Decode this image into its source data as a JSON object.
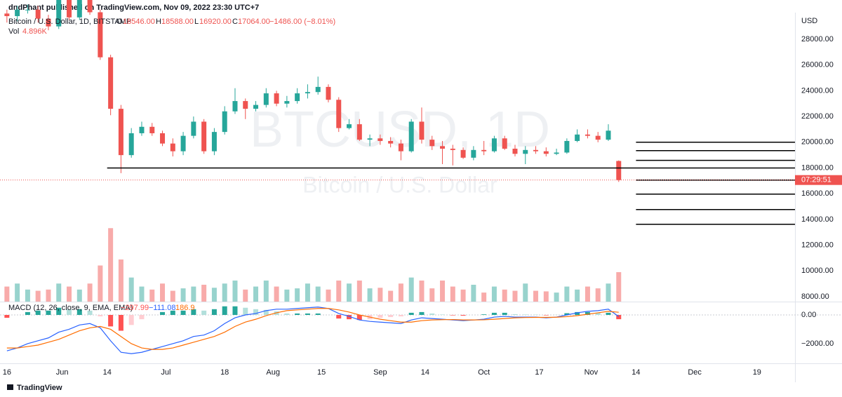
{
  "header": {
    "publisher": "dndPhant published on TradingView.com, Nov 09, 2022 23:30 UTC+7",
    "brand": "TradingView"
  },
  "chart_data": [
    {
      "type": "candlestick",
      "symbol": "Bitcoin / U.S. Dollar, 1D, BITSTAMP",
      "watermark": "BTCUSD, 1D",
      "watermark_subtitle": "Bitcoin / U.S. Dollar",
      "currency": "USD",
      "legend": {
        "o": "O",
        "h": "H",
        "l": "L",
        "c": "C",
        "open": "18546.00",
        "high": "18588.00",
        "low": "16920.00",
        "close": "17064.00",
        "change": "−1486.00 (−8.01%)",
        "vol": "Vol",
        "volume": "4.896K"
      },
      "countdown": "07:29:51",
      "up_color": "#26a69a",
      "down_color": "#ef5350",
      "up_volume_color": "#98d3cd",
      "down_volume_color": "#f8abaa",
      "x": [
        "2022-05-16",
        "2022-05-19",
        "2022-05-22",
        "2022-05-25",
        "2022-05-28",
        "2022-05-31",
        "2022-06-03",
        "2022-06-06",
        "2022-06-09",
        "2022-06-12",
        "2022-06-15",
        "2022-06-18",
        "2022-06-21",
        "2022-06-24",
        "2022-06-27",
        "2022-06-30",
        "2022-07-03",
        "2022-07-06",
        "2022-07-09",
        "2022-07-12",
        "2022-07-15",
        "2022-07-18",
        "2022-07-21",
        "2022-07-24",
        "2022-07-27",
        "2022-07-30",
        "2022-08-02",
        "2022-08-05",
        "2022-08-08",
        "2022-08-11",
        "2022-08-14",
        "2022-08-17",
        "2022-08-20",
        "2022-08-23",
        "2022-08-26",
        "2022-08-29",
        "2022-09-01",
        "2022-09-04",
        "2022-09-07",
        "2022-09-10",
        "2022-09-13",
        "2022-09-16",
        "2022-09-19",
        "2022-09-22",
        "2022-09-25",
        "2022-09-28",
        "2022-10-01",
        "2022-10-04",
        "2022-10-07",
        "2022-10-10",
        "2022-10-13",
        "2022-10-16",
        "2022-10-19",
        "2022-10-22",
        "2022-10-25",
        "2022-10-28",
        "2022-10-31",
        "2022-11-03",
        "2022-11-06",
        "2022-11-09"
      ],
      "open": [
        30000,
        29800,
        30300,
        30300,
        29600,
        29000,
        31700,
        29700,
        31300,
        30100,
        26600,
        22600,
        19000,
        20700,
        21200,
        20700,
        19900,
        19300,
        20500,
        21600,
        19300,
        20800,
        22400,
        23200,
        22600,
        22900,
        23800,
        23000,
        23200,
        23800,
        23900,
        24300,
        23300,
        21100,
        21400,
        20200,
        20300,
        20100,
        19900,
        19300,
        21600,
        20200,
        19700,
        19500,
        19400,
        18800,
        19400,
        19300,
        20300,
        19500,
        19100,
        19400,
        19300,
        19100,
        19200,
        20100,
        20600,
        20500,
        20200,
        18546
      ],
      "high": [
        30300,
        30600,
        30700,
        30600,
        29900,
        32000,
        31900,
        31600,
        31500,
        30300,
        26800,
        22900,
        21100,
        21600,
        21500,
        20900,
        20300,
        20800,
        22000,
        21800,
        21100,
        22800,
        24200,
        23400,
        23200,
        24200,
        24000,
        23600,
        24200,
        24500,
        25100,
        24500,
        23500,
        21800,
        21800,
        20600,
        20600,
        20400,
        20200,
        21800,
        22700,
        20500,
        20100,
        19800,
        19600,
        19700,
        20100,
        20500,
        20500,
        19800,
        19700,
        19700,
        19600,
        19500,
        20300,
        21000,
        21000,
        20800,
        21400,
        18588
      ],
      "low": [
        29300,
        29400,
        30000,
        29300,
        28700,
        28800,
        29500,
        29500,
        29900,
        26400,
        22100,
        17600,
        18800,
        20500,
        20500,
        19700,
        18900,
        19000,
        20300,
        19100,
        19000,
        20600,
        22200,
        21800,
        22400,
        22700,
        22800,
        22700,
        23000,
        23400,
        23700,
        23100,
        20800,
        21000,
        20100,
        19700,
        19800,
        19600,
        18600,
        19200,
        19900,
        19400,
        18300,
        18200,
        18700,
        18600,
        19000,
        19200,
        19400,
        18900,
        18300,
        19100,
        18900,
        19000,
        19100,
        20000,
        20300,
        20000,
        20100,
        16920
      ],
      "close": [
        29800,
        30300,
        30300,
        29600,
        29000,
        31700,
        29700,
        31300,
        30100,
        26600,
        22600,
        19000,
        20700,
        21200,
        20700,
        19900,
        19300,
        20500,
        21600,
        19300,
        20800,
        22400,
        23200,
        22600,
        22900,
        23800,
        23000,
        23200,
        23800,
        23900,
        24300,
        23300,
        21100,
        21400,
        20200,
        20300,
        20100,
        19900,
        19300,
        21600,
        20200,
        19700,
        19500,
        19400,
        18800,
        19400,
        19300,
        20300,
        19500,
        19100,
        19400,
        19300,
        19100,
        19200,
        20100,
        20600,
        20500,
        20200,
        20900,
        17064
      ],
      "volume": [
        2.5,
        3,
        2,
        1.8,
        2,
        3,
        2.5,
        2,
        3,
        6,
        12.2,
        7,
        4,
        2.5,
        2,
        3,
        1.8,
        2.2,
        2.5,
        2.8,
        2.3,
        3,
        3.5,
        2,
        2.5,
        3.5,
        2.5,
        2,
        2.2,
        3,
        2.5,
        2,
        3.5,
        3,
        3.5,
        2.2,
        2.3,
        1.8,
        3,
        4,
        3.5,
        2.2,
        3.5,
        2.5,
        2,
        2.8,
        1.5,
        2.5,
        2,
        1.8,
        3,
        1.8,
        1.7,
        1.5,
        2.5,
        2,
        2.5,
        2.2,
        3,
        4.896
      ],
      "xlim": [
        "2022-05-14",
        "2022-12-30"
      ],
      "xticks": [
        {
          "value": "2022-05-16",
          "label": "16"
        },
        {
          "value": "2022-06-01",
          "label": "Jun"
        },
        {
          "value": "2022-06-14",
          "label": "14"
        },
        {
          "value": "2022-07-01",
          "label": "Jul"
        },
        {
          "value": "2022-07-18",
          "label": "18"
        },
        {
          "value": "2022-08-01",
          "label": "Aug"
        },
        {
          "value": "2022-08-15",
          "label": "15"
        },
        {
          "value": "2022-09-01",
          "label": "Sep"
        },
        {
          "value": "2022-09-14",
          "label": "14"
        },
        {
          "value": "2022-10-01",
          "label": "Oct"
        },
        {
          "value": "2022-10-17",
          "label": "17"
        },
        {
          "value": "2022-11-01",
          "label": "Nov"
        },
        {
          "value": "2022-11-14",
          "label": "14"
        },
        {
          "value": "2022-12-01",
          "label": "Dec"
        },
        {
          "value": "2022-12-19",
          "label": "19"
        }
      ],
      "ylim": [
        7619,
        30071
      ],
      "yticks": [
        {
          "value": 8000,
          "label": "8000.00"
        },
        {
          "value": 10000,
          "label": "10000.00"
        },
        {
          "value": 12000,
          "label": "12000.00"
        },
        {
          "value": 14000,
          "label": "14000.00"
        },
        {
          "value": 16000,
          "label": "16000.00"
        },
        {
          "value": 18000,
          "label": "18000.00"
        },
        {
          "value": 20000,
          "label": "20000.00"
        },
        {
          "value": 22000,
          "label": "22000.00"
        },
        {
          "value": 24000,
          "label": "24000.00"
        },
        {
          "value": 26000,
          "label": "26000.00"
        },
        {
          "value": 28000,
          "label": "28000.00"
        }
      ],
      "volume_ylim": [
        0,
        48
      ],
      "levels": [
        {
          "price": 18000,
          "from": "2022-06-14"
        },
        {
          "price": 20000,
          "from": "2022-11-14"
        },
        {
          "price": 19350,
          "from": "2022-11-14"
        },
        {
          "price": 18590,
          "from": "2022-11-14"
        },
        {
          "price": 17060,
          "from": "2022-11-14"
        },
        {
          "price": 15970,
          "from": "2022-11-14"
        },
        {
          "price": 14770,
          "from": "2022-11-14"
        },
        {
          "price": 13630,
          "from": "2022-11-14"
        }
      ]
    },
    {
      "type": "macd",
      "title": "MACD (12, 26, close, 9, EMA, EMA)",
      "value_labels": {
        "histogram": "−297.99",
        "macd": "−111.08",
        "signal": "186.9"
      },
      "macd_color": "#2962ff",
      "signal_color": "#ff6d00",
      "up_color": "#26a69a",
      "up_light_color": "#b2dfdb",
      "down_color": "#ff5252",
      "down_light_color": "#ffcdd2",
      "macd": [
        -2500,
        -2300,
        -2000,
        -1800,
        -1600,
        -1200,
        -1000,
        -700,
        -600,
        -900,
        -1800,
        -2600,
        -2700,
        -2600,
        -2400,
        -2200,
        -2000,
        -1800,
        -1500,
        -1400,
        -1100,
        -600,
        -200,
        0,
        100,
        300,
        400,
        400,
        450,
        500,
        550,
        450,
        100,
        -100,
        -350,
        -450,
        -500,
        -550,
        -600,
        -350,
        -200,
        -250,
        -300,
        -350,
        -400,
        -350,
        -300,
        -150,
        -100,
        -150,
        -150,
        -150,
        -200,
        -150,
        0,
        150,
        250,
        300,
        400,
        -111.08
      ],
      "signal": [
        -2300,
        -2300,
        -2200,
        -2100,
        -1900,
        -1700,
        -1400,
        -1100,
        -900,
        -800,
        -1000,
        -1500,
        -2000,
        -2300,
        -2400,
        -2400,
        -2300,
        -2100,
        -1900,
        -1700,
        -1500,
        -1200,
        -800,
        -500,
        -300,
        -50,
        150,
        300,
        350,
        400,
        450,
        450,
        350,
        200,
        0,
        -150,
        -300,
        -400,
        -500,
        -500,
        -400,
        -350,
        -330,
        -320,
        -350,
        -350,
        -340,
        -300,
        -250,
        -200,
        -180,
        -170,
        -170,
        -160,
        -120,
        -50,
        50,
        150,
        250,
        186.9
      ],
      "histogram": [
        -200,
        0,
        200,
        300,
        300,
        500,
        400,
        400,
        300,
        -100,
        -800,
        -1100,
        -700,
        -300,
        0,
        200,
        300,
        300,
        400,
        300,
        400,
        600,
        600,
        500,
        400,
        350,
        250,
        100,
        100,
        100,
        100,
        0,
        -250,
        -300,
        -350,
        -300,
        -200,
        -150,
        -100,
        150,
        200,
        100,
        30,
        -30,
        -50,
        0,
        40,
        150,
        150,
        50,
        30,
        20,
        -30,
        10,
        120,
        200,
        200,
        150,
        150,
        -297.99
      ],
      "ylim": [
        -3370,
        830
      ],
      "yticks": [
        {
          "value": 0,
          "label": "0.00"
        },
        {
          "value": -2000,
          "label": "−2000.00"
        }
      ]
    }
  ]
}
